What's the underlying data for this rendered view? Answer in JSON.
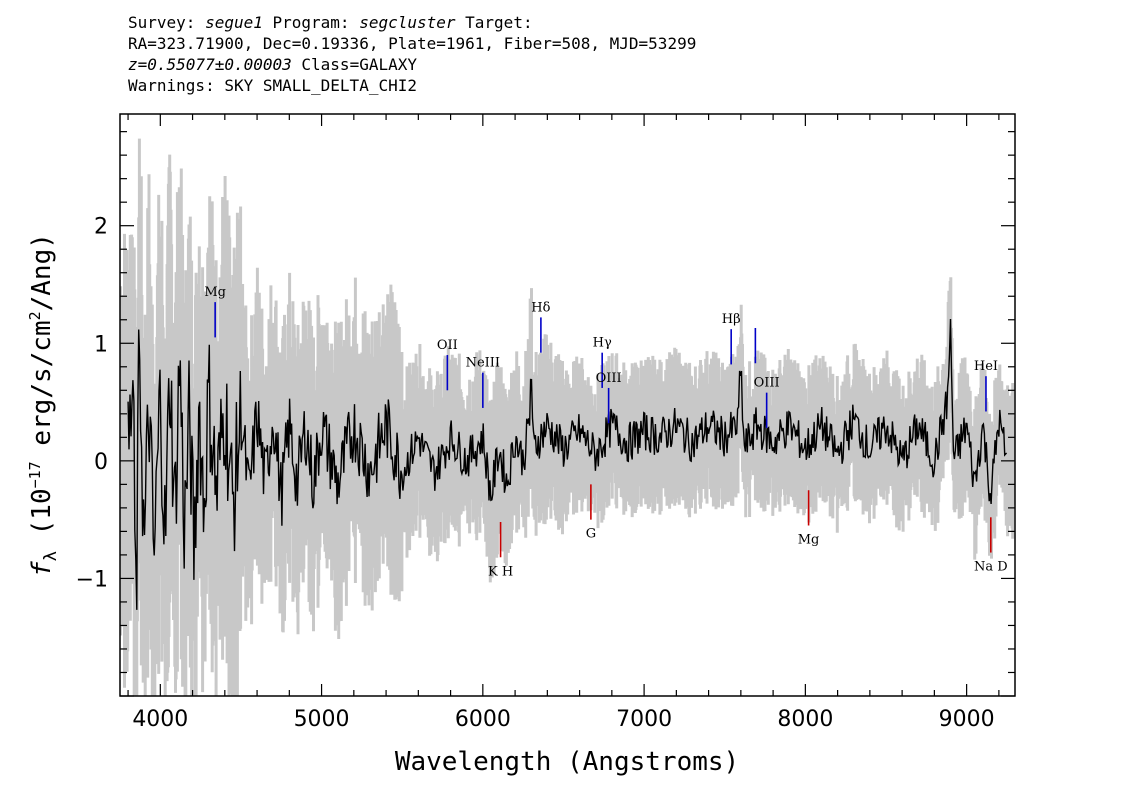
{
  "header": {
    "line1": {
      "survey_prefix": "Survey: ",
      "survey": "segue1",
      "program_prefix": " Program: ",
      "program": "segcluster",
      "target_suffix": " Target:"
    },
    "line2": "RA=323.71900, Dec=0.19336, Plate=1961, Fiber=508, MJD=53299",
    "line3": {
      "redshift": "z=0.55077±0.00003",
      "class_text": " Class=GALAXY"
    },
    "line4": "Warnings: SKY SMALL_DELTA_CHI2"
  },
  "chart_data": {
    "type": "line",
    "title": "",
    "xlabel": "Wavelength (Angstroms)",
    "ylabel": "f_λ (10^-17 erg/s/cm^2/Ang)",
    "xlim": [
      3750,
      9300
    ],
    "ylim": [
      -2.0,
      2.95
    ],
    "x_ticks": [
      4000,
      5000,
      6000,
      7000,
      8000,
      9000
    ],
    "y_ticks": [
      2,
      1,
      0,
      -1
    ],
    "y_tick_labels": [
      "2",
      "1",
      "0",
      "−1"
    ],
    "grid": false,
    "series": [
      {
        "role": "error",
        "color": "#c8c8c8"
      },
      {
        "role": "flux",
        "color": "#000000"
      }
    ],
    "flux_points": [
      [
        3800,
        0.0
      ],
      [
        3830,
        0.6
      ],
      [
        3850,
        -1.4
      ],
      [
        3870,
        1.1
      ],
      [
        3900,
        -0.8
      ],
      [
        3930,
        0.5
      ],
      [
        3960,
        -0.9
      ],
      [
        4000,
        0.6
      ],
      [
        4030,
        -0.7
      ],
      [
        4060,
        0.8
      ],
      [
        4090,
        -0.5
      ],
      [
        4120,
        0.9
      ],
      [
        4150,
        -0.6
      ],
      [
        4180,
        0.4
      ],
      [
        4210,
        -0.8
      ],
      [
        4240,
        0.5
      ],
      [
        4270,
        -0.4
      ],
      [
        4300,
        0.6
      ],
      [
        4350,
        -0.3
      ],
      [
        4400,
        0.5
      ],
      [
        4450,
        -0.4
      ],
      [
        4500,
        0.4
      ],
      [
        4550,
        -0.3
      ],
      [
        4600,
        0.4
      ],
      [
        4650,
        -0.2
      ],
      [
        4700,
        0.4
      ],
      [
        4750,
        -0.3
      ],
      [
        4800,
        0.3
      ],
      [
        4850,
        -0.2
      ],
      [
        4900,
        0.3
      ],
      [
        4950,
        -0.2
      ],
      [
        5000,
        0.3
      ],
      [
        5100,
        -0.2
      ],
      [
        5200,
        0.3
      ],
      [
        5300,
        -0.1
      ],
      [
        5400,
        0.3
      ],
      [
        5500,
        -0.1
      ],
      [
        5600,
        0.2
      ],
      [
        5700,
        -0.1
      ],
      [
        5800,
        0.2
      ],
      [
        5900,
        0.0
      ],
      [
        6000,
        0.2
      ],
      [
        6050,
        -0.3
      ],
      [
        6100,
        0.1
      ],
      [
        6150,
        -0.2
      ],
      [
        6200,
        0.2
      ],
      [
        6250,
        0.0
      ],
      [
        6290,
        0.35
      ],
      [
        6300,
        0.9
      ],
      [
        6310,
        0.1
      ],
      [
        6400,
        0.3
      ],
      [
        6500,
        0.1
      ],
      [
        6600,
        0.25
      ],
      [
        6700,
        0.05
      ],
      [
        6800,
        0.3
      ],
      [
        6900,
        0.15
      ],
      [
        7000,
        0.25
      ],
      [
        7100,
        0.2
      ],
      [
        7200,
        0.3
      ],
      [
        7300,
        0.15
      ],
      [
        7400,
        0.3
      ],
      [
        7500,
        0.2
      ],
      [
        7580,
        0.3
      ],
      [
        7600,
        0.8
      ],
      [
        7620,
        0.1
      ],
      [
        7700,
        0.3
      ],
      [
        7800,
        0.15
      ],
      [
        7900,
        0.3
      ],
      [
        8000,
        0.1
      ],
      [
        8100,
        0.3
      ],
      [
        8200,
        0.05
      ],
      [
        8300,
        0.35
      ],
      [
        8400,
        0.1
      ],
      [
        8500,
        0.3
      ],
      [
        8600,
        0.0
      ],
      [
        8700,
        0.3
      ],
      [
        8800,
        0.0
      ],
      [
        8880,
        0.5
      ],
      [
        8900,
        1.1
      ],
      [
        8920,
        0.0
      ],
      [
        9000,
        0.3
      ],
      [
        9050,
        -0.2
      ],
      [
        9100,
        0.3
      ],
      [
        9150,
        -0.3
      ],
      [
        9200,
        0.35
      ],
      [
        9250,
        0.0
      ]
    ],
    "emission_lines": [
      {
        "label": "Mg",
        "x": 4340,
        "y": 1.35,
        "color": "#0000c8"
      },
      {
        "label": "OII",
        "x": 5780,
        "y": 0.9,
        "color": "#0000c8"
      },
      {
        "label": "NeIII",
        "x": 6000,
        "y": 0.75,
        "color": "#0000c8"
      },
      {
        "label": "Hδ",
        "x": 6360,
        "y": 1.22,
        "color": "#0000c8"
      },
      {
        "label": "Hγ",
        "x": 6740,
        "y": 0.92,
        "color": "#0000c8"
      },
      {
        "label": "OIII",
        "x": 6780,
        "y": 0.62,
        "color": "#0000c8"
      },
      {
        "label": "Hβ",
        "x": 7540,
        "y": 1.12,
        "color": "#0000c8"
      },
      {
        "label": "",
        "x": 7690,
        "y": 1.13,
        "color": "#0000c8"
      },
      {
        "label": "OIII",
        "x": 7760,
        "y": 0.58,
        "color": "#0000c8"
      },
      {
        "label": "HeI",
        "x": 9120,
        "y": 0.72,
        "color": "#0000c8"
      }
    ],
    "absorption_lines": [
      {
        "label": "K H",
        "x": 6110,
        "y": -0.82,
        "color": "#c80000"
      },
      {
        "label": "G",
        "x": 6670,
        "y": -0.5,
        "color": "#c80000"
      },
      {
        "label": "Mg",
        "x": 8020,
        "y": -0.55,
        "color": "#c80000"
      },
      {
        "label": "Na D",
        "x": 9150,
        "y": -0.78,
        "color": "#c80000"
      }
    ]
  }
}
